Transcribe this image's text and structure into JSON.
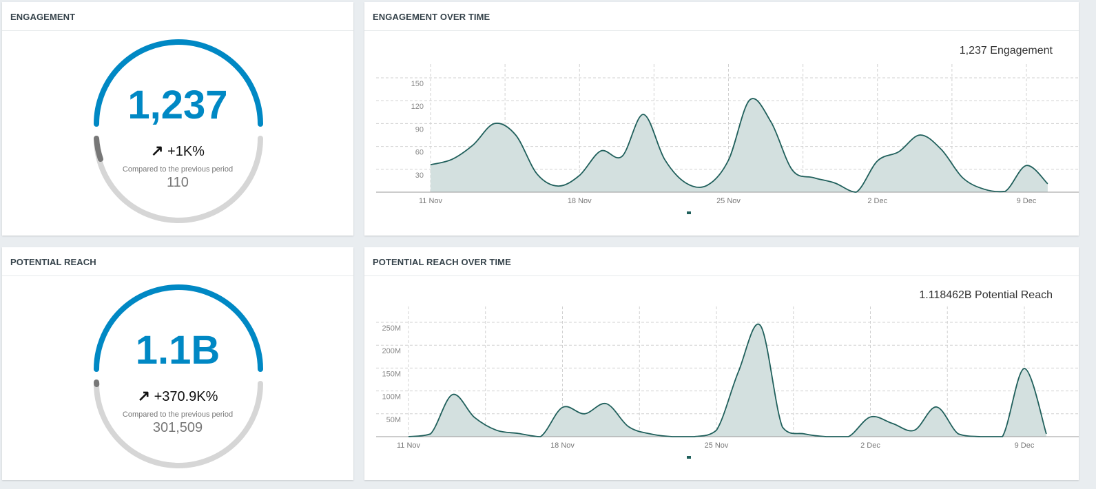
{
  "engagement": {
    "title": "ENGAGEMENT",
    "value": "1,237",
    "change_icon": "arrow-up-right-icon",
    "change": "+1K%",
    "compare_label": "Compared to the previous period",
    "previous_value": "110"
  },
  "engagement_over_time": {
    "title": "ENGAGEMENT OVER TIME",
    "total_label": "1,237 Engagement"
  },
  "reach": {
    "title": "POTENTIAL REACH",
    "value": "1.1B",
    "change_icon": "arrow-up-right-icon",
    "change": "+370.9K%",
    "compare_label": "Compared to the previous period",
    "previous_value": "301,509"
  },
  "reach_over_time": {
    "title": "POTENTIAL REACH OVER TIME",
    "total_label": "1.118462B Potential Reach"
  },
  "colors": {
    "accent": "#0088c4",
    "series": "#1f5f5b",
    "fill": "#d3e0df",
    "track": "#d6d6d6",
    "previous": "#777777"
  },
  "chart_data": [
    {
      "type": "area",
      "x_start": "11 Nov",
      "x_interval": "1 day",
      "x_ticks": [
        "11 Nov",
        "18 Nov",
        "25 Nov",
        "2 Dec",
        "9 Dec"
      ],
      "y_ticks": [
        "30",
        "60",
        "90",
        "120",
        "150"
      ],
      "ylim": [
        0,
        150
      ],
      "grid": true,
      "values": [
        36,
        43,
        62,
        90,
        75,
        24,
        8,
        22,
        54,
        47,
        102,
        43,
        12,
        9,
        42,
        121,
        92,
        29,
        19,
        12,
        0,
        41,
        53,
        75,
        56,
        19,
        4,
        1,
        35,
        11
      ]
    },
    {
      "type": "area",
      "x_start": "11 Nov",
      "x_interval": "1 day",
      "x_ticks": [
        "11 Nov",
        "18 Nov",
        "25 Nov",
        "2 Dec",
        "9 Dec"
      ],
      "y_ticks": [
        "50M",
        "100M",
        "150M",
        "200M",
        "250M"
      ],
      "ylim": [
        0,
        250
      ],
      "y_unit": "M",
      "grid": true,
      "values": [
        0,
        6,
        92,
        42,
        14,
        7,
        0,
        64,
        50,
        72,
        22,
        6,
        0,
        0,
        14,
        142,
        243,
        21,
        6,
        0,
        0,
        43,
        29,
        14,
        65,
        6,
        0,
        0,
        149,
        6
      ]
    }
  ]
}
